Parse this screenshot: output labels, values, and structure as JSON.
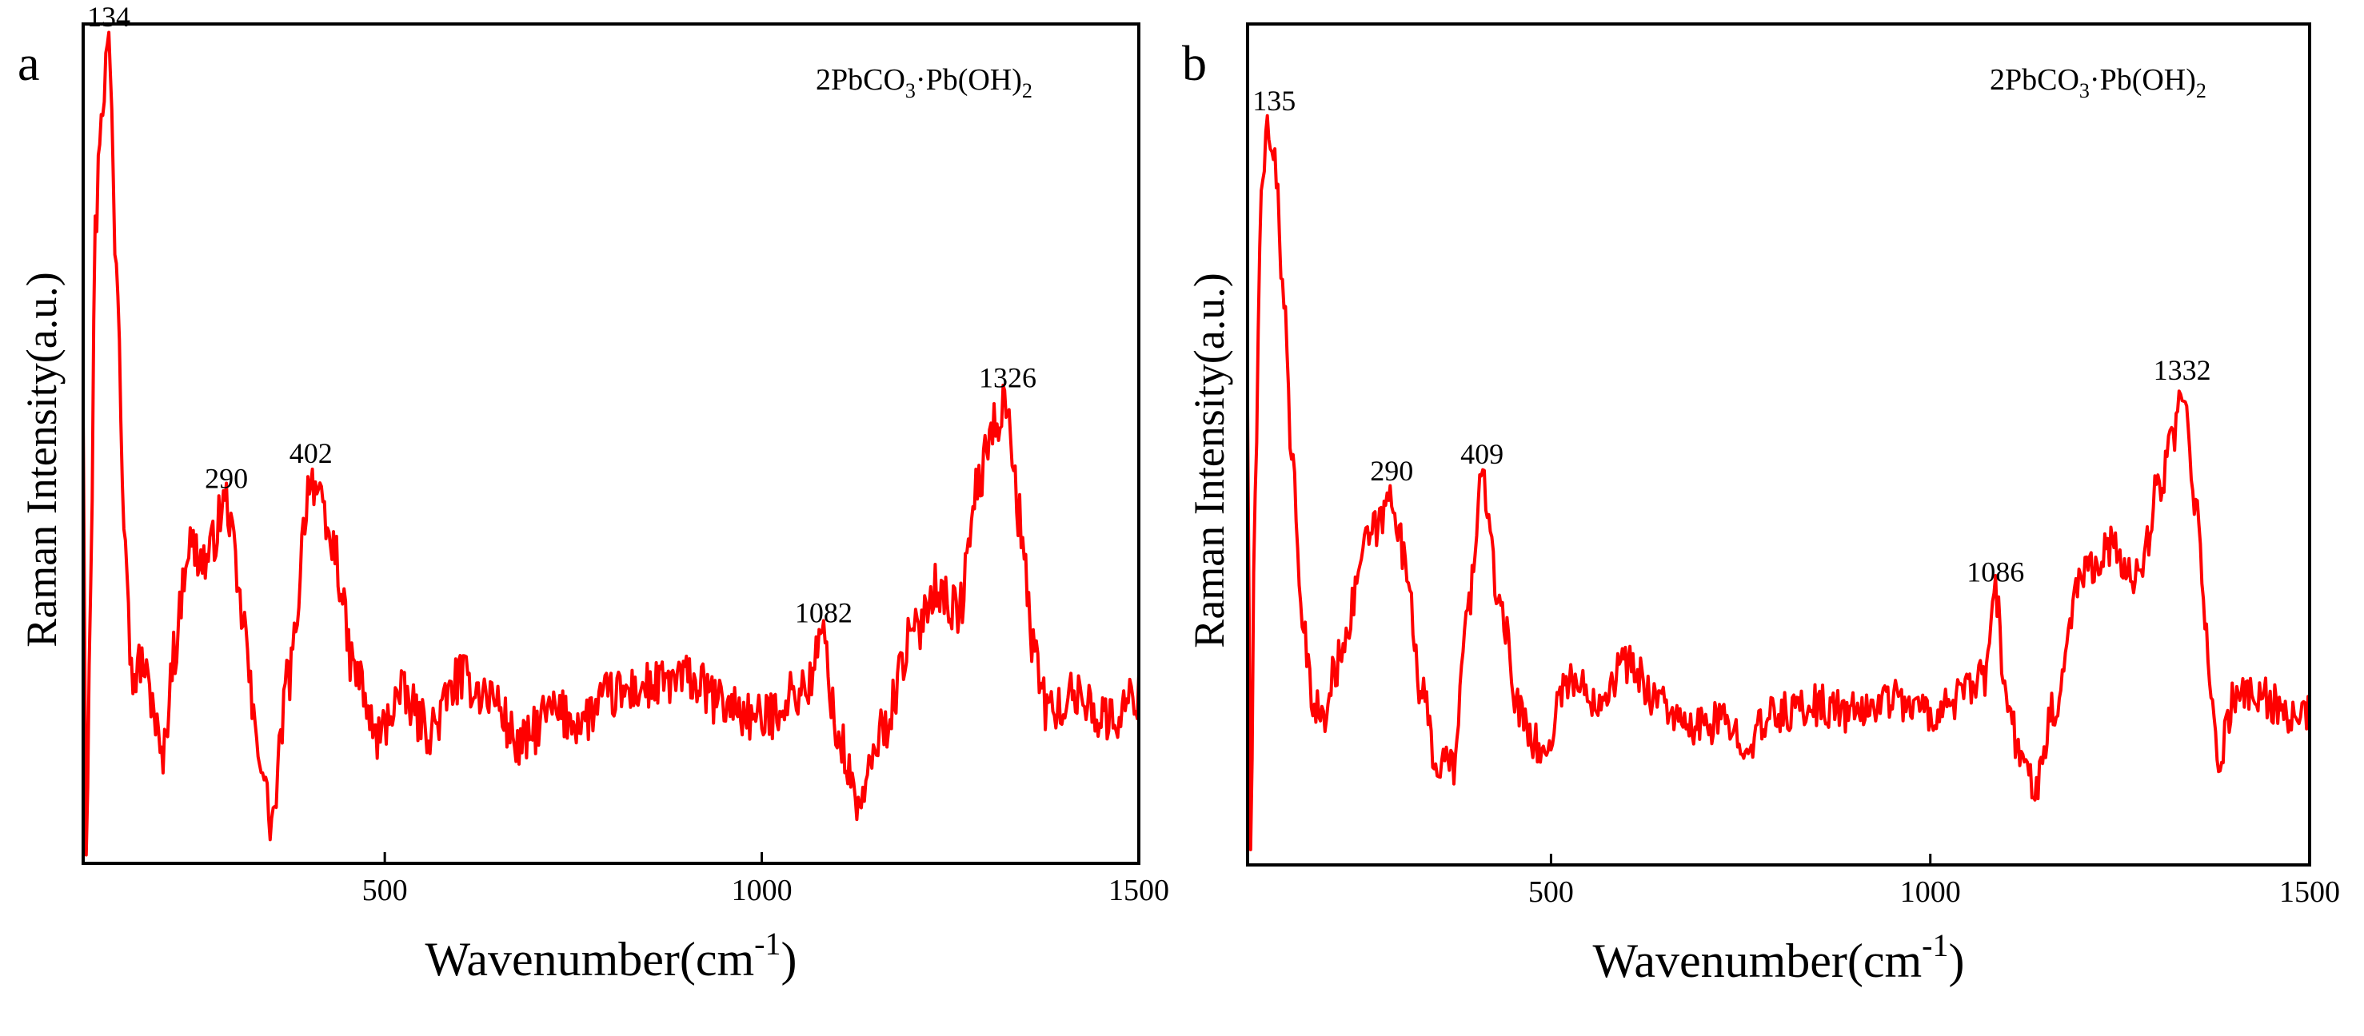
{
  "chart_data": [
    {
      "type": "line",
      "panel": "a",
      "annotation": {
        "formula": "2PbCO",
        "sub1": "3",
        "mid": "·Pb(OH)",
        "sub2": "2"
      },
      "xlabel": {
        "main": "Wavenumber(cm",
        "sup": "-1",
        "close": ")"
      },
      "ylabel": "Raman Intensity(a.u.)",
      "xlim": [
        100,
        1500
      ],
      "ylim": [
        0,
        1
      ],
      "xticks": [
        500,
        1000,
        1500
      ],
      "xtick_labels": [
        "500",
        "1000",
        "1500"
      ],
      "yticks_shown": false,
      "series": [
        {
          "name": "2PbCO3·Pb(OH)2",
          "color": "#ff0000",
          "baseline": 0.2,
          "noise": 0.03,
          "x": [
            100,
            104,
            110,
            116,
            124,
            134,
            144,
            155,
            165,
            178,
            190,
            205,
            220,
            240,
            262,
            290,
            310,
            330,
            350,
            372,
            402,
            430,
            460,
            490,
            520,
            560,
            600,
            640,
            680,
            720,
            760,
            800,
            850,
            900,
            950,
            1000,
            1040,
            1060,
            1082,
            1100,
            1130,
            1160,
            1200,
            1230,
            1260,
            1290,
            1305,
            1326,
            1340,
            1360,
            1380,
            1420,
            1460,
            1500
          ],
          "y": [
            0.55,
            0.02,
            0.35,
            0.75,
            0.9,
            0.98,
            0.72,
            0.42,
            0.22,
            0.24,
            0.2,
            0.12,
            0.25,
            0.38,
            0.36,
            0.43,
            0.3,
            0.15,
            0.05,
            0.22,
            0.46,
            0.38,
            0.23,
            0.15,
            0.2,
            0.16,
            0.22,
            0.2,
            0.14,
            0.18,
            0.17,
            0.2,
            0.21,
            0.22,
            0.19,
            0.17,
            0.2,
            0.21,
            0.27,
            0.15,
            0.07,
            0.16,
            0.27,
            0.33,
            0.3,
            0.46,
            0.52,
            0.55,
            0.42,
            0.26,
            0.18,
            0.2,
            0.17,
            0.2
          ]
        }
      ],
      "peak_labels": [
        {
          "x": 134,
          "y": 0.98,
          "label": "134"
        },
        {
          "x": 290,
          "y": 0.43,
          "label": "290"
        },
        {
          "x": 402,
          "y": 0.46,
          "label": "402"
        },
        {
          "x": 1082,
          "y": 0.27,
          "label": "1082"
        },
        {
          "x": 1326,
          "y": 0.55,
          "label": "1326"
        }
      ]
    },
    {
      "type": "line",
      "panel": "b",
      "annotation": {
        "formula": "2PbCO",
        "sub1": "3",
        "mid": "·Pb(OH)",
        "sub2": "2"
      },
      "xlabel": {
        "main": "Wavenumber(cm",
        "sup": "-1",
        "close": ")"
      },
      "ylabel": "Raman Intensity(a.u.)",
      "xlim": [
        100,
        1500
      ],
      "ylim": [
        0,
        1
      ],
      "xticks": [
        500,
        1000,
        1500
      ],
      "xtick_labels": [
        "500",
        "1000",
        "1500"
      ],
      "yticks_shown": false,
      "series": [
        {
          "name": "2PbCO3·Pb(OH)2",
          "color": "#ff0000",
          "baseline": 0.19,
          "noise": 0.025,
          "x": [
            100,
            104,
            110,
            118,
            126,
            135,
            146,
            158,
            170,
            185,
            200,
            215,
            230,
            255,
            270,
            290,
            310,
            330,
            350,
            372,
            390,
            409,
            430,
            460,
            490,
            520,
            560,
            600,
            640,
            680,
            720,
            760,
            800,
            850,
            900,
            950,
            1000,
            1040,
            1070,
            1086,
            1100,
            1120,
            1140,
            1160,
            1200,
            1240,
            1260,
            1280,
            1300,
            1320,
            1332,
            1350,
            1370,
            1380,
            1400,
            1440,
            1480,
            1500
          ],
          "y": [
            0.55,
            0.02,
            0.45,
            0.78,
            0.88,
            0.85,
            0.7,
            0.5,
            0.3,
            0.2,
            0.17,
            0.23,
            0.28,
            0.38,
            0.4,
            0.44,
            0.35,
            0.2,
            0.12,
            0.12,
            0.3,
            0.46,
            0.32,
            0.18,
            0.13,
            0.22,
            0.2,
            0.24,
            0.2,
            0.16,
            0.17,
            0.15,
            0.18,
            0.19,
            0.18,
            0.2,
            0.18,
            0.2,
            0.22,
            0.32,
            0.2,
            0.12,
            0.1,
            0.18,
            0.35,
            0.38,
            0.34,
            0.36,
            0.45,
            0.5,
            0.56,
            0.42,
            0.22,
            0.12,
            0.2,
            0.2,
            0.17,
            0.18
          ]
        }
      ],
      "peak_labels": [
        {
          "x": 135,
          "y": 0.88,
          "label": "135"
        },
        {
          "x": 290,
          "y": 0.44,
          "label": "290"
        },
        {
          "x": 409,
          "y": 0.46,
          "label": "409"
        },
        {
          "x": 1086,
          "y": 0.32,
          "label": "1086"
        },
        {
          "x": 1332,
          "y": 0.56,
          "label": "1332"
        }
      ]
    }
  ],
  "panels": [
    {
      "letter": "a"
    },
    {
      "letter": "b"
    }
  ]
}
